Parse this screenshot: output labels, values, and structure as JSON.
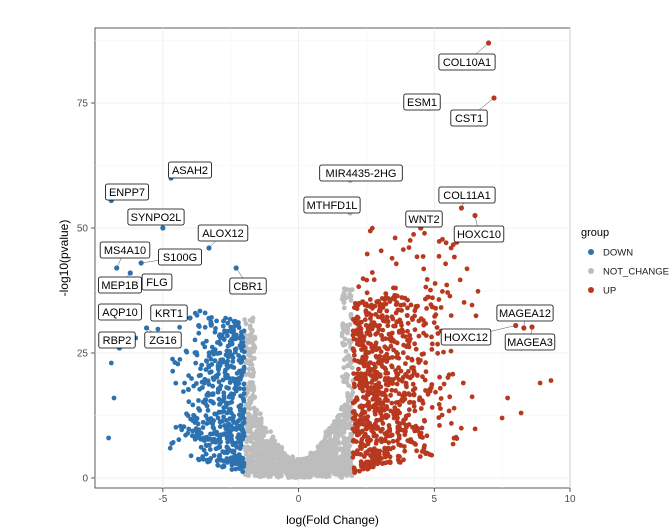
{
  "chart_data": {
    "type": "scatter",
    "title": "",
    "xlabel": "log(Fold Change)",
    "ylabel": "-log10(pvalue)",
    "xlim": [
      -7.5,
      10.0
    ],
    "ylim": [
      -2.0,
      90.0
    ],
    "xticks": [
      -5,
      0,
      5,
      10
    ],
    "yticks": [
      0,
      25,
      50,
      75
    ],
    "grid": true,
    "legend": {
      "title": "group",
      "placement": "right",
      "entries": [
        {
          "name": "DOWN",
          "color": "#2c72b0"
        },
        {
          "name": "NOT_CHANGE",
          "color": "#bdbdbd"
        },
        {
          "name": "UP",
          "color": "#b8391f"
        }
      ]
    },
    "labeled_genes": [
      {
        "gene": "COL10A1",
        "x": 7.0,
        "y": 87.0,
        "group": "UP"
      },
      {
        "gene": "ESM1",
        "x": 4.8,
        "y": 74.0,
        "group": "UP"
      },
      {
        "gene": "CST1",
        "x": 7.2,
        "y": 76.0,
        "group": "UP"
      },
      {
        "gene": "COL11A1",
        "x": 6.0,
        "y": 54.0,
        "group": "UP"
      },
      {
        "gene": "WNT2",
        "x": 4.5,
        "y": 50.0,
        "group": "UP"
      },
      {
        "gene": "HOXC10",
        "x": 6.5,
        "y": 52.5,
        "group": "UP"
      },
      {
        "gene": "MAGEA12",
        "x": 8.3,
        "y": 30.0,
        "group": "UP"
      },
      {
        "gene": "HOXC12",
        "x": 8.0,
        "y": 30.5,
        "group": "UP"
      },
      {
        "gene": "MAGEA3",
        "x": 8.6,
        "y": 30.2,
        "group": "UP"
      },
      {
        "gene": "MIR4435-2HG",
        "x": 1.9,
        "y": 59.5,
        "group": "NOT_CHANGE"
      },
      {
        "gene": "MTHFD1L",
        "x": 1.9,
        "y": 53.0,
        "group": "NOT_CHANGE"
      },
      {
        "gene": "ASAH2",
        "x": -4.7,
        "y": 60.0,
        "group": "DOWN"
      },
      {
        "gene": "ENPP7",
        "x": -6.9,
        "y": 55.5,
        "group": "DOWN"
      },
      {
        "gene": "SYNPO2L",
        "x": -5.0,
        "y": 50.0,
        "group": "DOWN"
      },
      {
        "gene": "ALOX12",
        "x": -3.3,
        "y": 46.0,
        "group": "DOWN"
      },
      {
        "gene": "MS4A10",
        "x": -6.7,
        "y": 42.0,
        "group": "DOWN"
      },
      {
        "gene": "S100G",
        "x": -5.8,
        "y": 43.0,
        "group": "DOWN"
      },
      {
        "gene": "MEP1B",
        "x": -6.2,
        "y": 41.0,
        "group": "DOWN"
      },
      {
        "gene": "FLG",
        "x": -5.7,
        "y": 39.0,
        "group": "DOWN"
      },
      {
        "gene": "CBR1",
        "x": -2.3,
        "y": 42.0,
        "group": "DOWN"
      },
      {
        "gene": "AQP10",
        "x": -6.4,
        "y": 33.0,
        "group": "DOWN"
      },
      {
        "gene": "KRT1",
        "x": -4.0,
        "y": 32.0,
        "group": "DOWN"
      },
      {
        "gene": "RBP2",
        "x": -6.6,
        "y": 26.0,
        "group": "DOWN"
      },
      {
        "gene": "ZG16",
        "x": -5.6,
        "y": 30.0,
        "group": "DOWN"
      }
    ],
    "distribution": {
      "thresholds": {
        "fold_change_down": -2.0,
        "fold_change_up": 2.0
      },
      "point_count_by_group": {
        "DOWN": 520,
        "NOT_CHANGE": 1400,
        "UP": 800
      }
    }
  }
}
